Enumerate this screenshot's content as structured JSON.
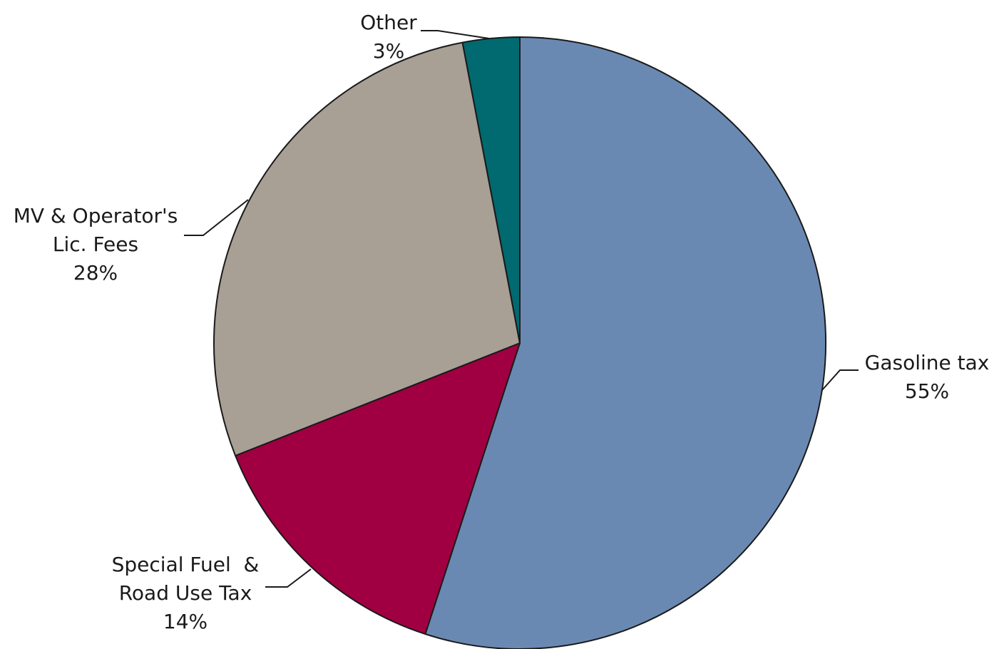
{
  "chart_data": {
    "type": "pie",
    "title": "",
    "start_angle_deg": 0,
    "direction": "clockwise",
    "slices": [
      {
        "label_lines": [
          "Gasoline tax"
        ],
        "value": 55,
        "value_text": "55%",
        "color": "#6a89b2"
      },
      {
        "label_lines": [
          "Special Fuel  &",
          "Road Use Tax"
        ],
        "value": 14,
        "value_text": "14%",
        "color": "#a00042"
      },
      {
        "label_lines": [
          "MV & Operator's",
          "Lic. Fees"
        ],
        "value": 28,
        "value_text": "28%",
        "color": "#a89f95"
      },
      {
        "label_lines": [
          "Other"
        ],
        "value": 3,
        "value_text": "3%",
        "color": "#006a70"
      }
    ]
  }
}
